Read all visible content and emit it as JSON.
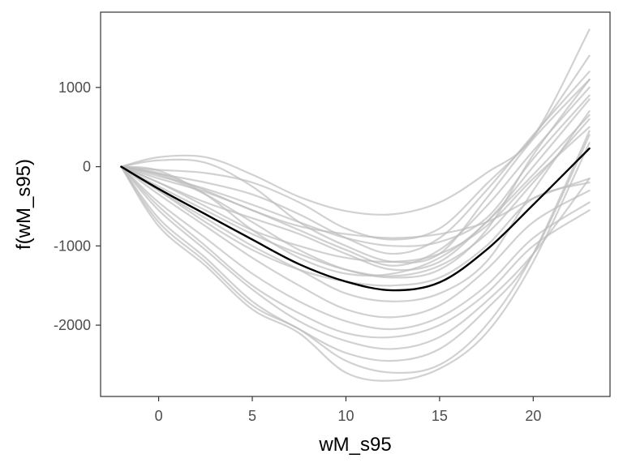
{
  "chart_data": {
    "type": "line",
    "title": "",
    "xlabel": "wM_s95",
    "ylabel": "f(wM_s95)",
    "xlim": [
      -3.1,
      24.1
    ],
    "ylim": [
      -2900,
      1950
    ],
    "x_ticks": [
      0,
      5,
      10,
      15,
      20
    ],
    "y_ticks": [
      1000,
      0,
      -1000,
      -2000
    ],
    "x_tick_labels": [
      "0",
      "5",
      "10",
      "15",
      "20"
    ],
    "y_tick_labels": [
      "1000",
      "0",
      "-1000",
      "-2000"
    ],
    "grid": false,
    "legend": "none",
    "colors": {
      "draws": "#bdbdbd",
      "mean": "#000000",
      "panel_border": "#333333",
      "tick": "#333333"
    },
    "x": [
      -2,
      0,
      2.5,
      5,
      7.5,
      10,
      12.5,
      15,
      17.5,
      20,
      23
    ],
    "mean_curve": [
      0,
      -280,
      -600,
      -920,
      -1230,
      -1450,
      -1560,
      -1460,
      -1050,
      -480,
      230
    ],
    "draws": [
      [
        0,
        120,
        120,
        -100,
        -380,
        -560,
        -600,
        -450,
        -80,
        380,
        1730
      ],
      [
        0,
        -40,
        -80,
        -200,
        -450,
        -780,
        -920,
        -780,
        -220,
        380,
        1400
      ],
      [
        0,
        -90,
        -200,
        -350,
        -600,
        -900,
        -1100,
        -900,
        -300,
        400,
        1200
      ],
      [
        0,
        80,
        50,
        -250,
        -700,
        -1000,
        -1200,
        -1100,
        -400,
        350,
        1100
      ],
      [
        0,
        -150,
        -320,
        -550,
        -800,
        -1050,
        -1250,
        -1050,
        -500,
        200,
        1000
      ],
      [
        0,
        -100,
        -350,
        -700,
        -1050,
        -1300,
        -1400,
        -1300,
        -800,
        150,
        1100
      ],
      [
        0,
        -50,
        -350,
        -800,
        -1150,
        -1350,
        -1350,
        -1150,
        -700,
        0,
        850
      ],
      [
        0,
        -200,
        -450,
        -650,
        -850,
        -1100,
        -1300,
        -1200,
        -700,
        -100,
        650
      ],
      [
        0,
        -250,
        -550,
        -850,
        -1100,
        -1300,
        -1380,
        -1250,
        -850,
        -200,
        600
      ],
      [
        0,
        -80,
        -300,
        -550,
        -750,
        -850,
        -900,
        -850,
        -700,
        -400,
        -150
      ],
      [
        0,
        -300,
        -700,
        -1050,
        -1300,
        -1450,
        -1500,
        -1400,
        -1000,
        -400,
        -200
      ],
      [
        0,
        -350,
        -750,
        -1150,
        -1500,
        -1800,
        -1900,
        -1750,
        -1300,
        -700,
        -300
      ],
      [
        0,
        -450,
        -900,
        -1350,
        -1700,
        -1950,
        -2050,
        -1900,
        -1500,
        -900,
        -450
      ],
      [
        0,
        -500,
        -1000,
        -1500,
        -1850,
        -2100,
        -2150,
        -2000,
        -1600,
        -1000,
        -550
      ],
      [
        0,
        -550,
        -1050,
        -1550,
        -1950,
        -2200,
        -2300,
        -2150,
        -1700,
        -1100,
        -150
      ],
      [
        0,
        -650,
        -1150,
        -1700,
        -2050,
        -2350,
        -2450,
        -2300,
        -1800,
        -1100,
        400
      ],
      [
        0,
        -700,
        -1200,
        -1750,
        -2050,
        -2450,
        -2600,
        -2500,
        -2000,
        -1100,
        450
      ],
      [
        0,
        -750,
        -1250,
        -1800,
        -2100,
        -2600,
        -2700,
        -2550,
        -2100,
        -1200,
        300
      ],
      [
        0,
        -300,
        -650,
        -1000,
        -1300,
        -1600,
        -1700,
        -1600,
        -1200,
        -300,
        700
      ],
      [
        0,
        -120,
        -280,
        -480,
        -700,
        -900,
        -1000,
        -950,
        -650,
        100,
        900
      ],
      [
        0,
        -200,
        -500,
        -800,
        -1000,
        -1150,
        -1200,
        -1100,
        -750,
        -150,
        500
      ]
    ]
  }
}
